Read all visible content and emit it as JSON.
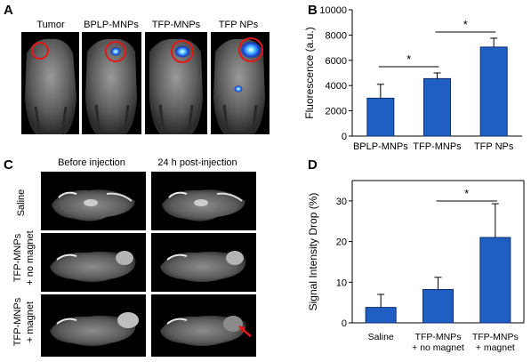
{
  "panels": {
    "A": {
      "letter": "A",
      "columns": [
        "Tumor",
        "BPLP-MNPs",
        "TFP-MNPs",
        "TFP NPs"
      ]
    },
    "B": {
      "letter": "B",
      "ylabel": "Fluorescence (a.u.)",
      "significance": [
        "*",
        "*"
      ]
    },
    "C": {
      "letter": "C",
      "columns": [
        "Before injection",
        "24 h post-injection"
      ],
      "rows": [
        {
          "lines": [
            "Saline"
          ]
        },
        {
          "lines": [
            "TFP-MNPs",
            "+ no magnet"
          ]
        },
        {
          "lines": [
            "TFP-MNPs",
            "+ magnet"
          ]
        }
      ]
    },
    "D": {
      "letter": "D",
      "ylabel": "Signal Intensity Drop (%)",
      "significance": [
        "*"
      ],
      "xlabels": [
        {
          "lines": [
            "Saline"
          ]
        },
        {
          "lines": [
            "TFP-MNPs",
            "+ no magnet"
          ]
        },
        {
          "lines": [
            "TFP-MNPs",
            "+ magnet"
          ]
        }
      ]
    }
  },
  "colors": {
    "bar": "#1f5fc4",
    "bar_edge": "#0c2f6e",
    "image_bg": "#000000"
  },
  "chart_data": [
    {
      "type": "bar",
      "panel": "B",
      "categories": [
        "BPLP-MNPs",
        "TFP-MNPs",
        "TFP NPs"
      ],
      "values": [
        3000,
        4550,
        7050
      ],
      "errors": [
        1100,
        450,
        700
      ],
      "ylabel": "Fluorescence (a.u.)",
      "ylim": [
        0,
        10000
      ],
      "yticks": [
        0,
        2000,
        4000,
        6000,
        8000,
        10000
      ]
    },
    {
      "type": "bar",
      "panel": "D",
      "categories": [
        "Saline",
        "TFP-MNPs + no magnet",
        "TFP-MNPs + magnet"
      ],
      "values": [
        3.8,
        8.2,
        21.0
      ],
      "errors": [
        3.2,
        3.0,
        8.3
      ],
      "ylabel": "Signal Intensity Drop (%)",
      "ylim": [
        0,
        35
      ],
      "yticks": [
        0,
        10,
        20,
        30
      ]
    }
  ]
}
